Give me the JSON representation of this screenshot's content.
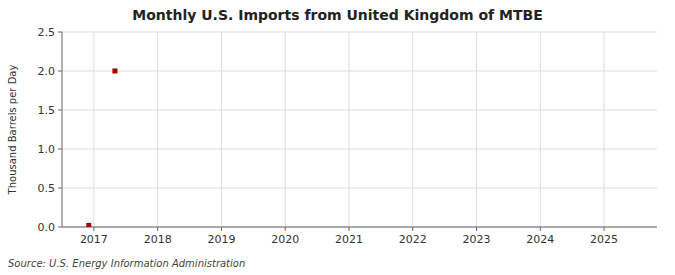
{
  "chart_data": {
    "type": "scatter",
    "title": "Monthly U.S. Imports from United Kingdom of MTBE",
    "ylabel": "Thousand Barrels per Day",
    "source": "Source: U.S. Energy Information Administration",
    "x": [
      2016.92,
      2017.33
    ],
    "values": [
      0.02,
      2.0
    ],
    "color": "#aa0000",
    "marker": "square",
    "xlim": [
      2016.5,
      2025.83
    ],
    "ylim": [
      0.0,
      2.5
    ],
    "xticks": [
      2017,
      2018,
      2019,
      2020,
      2021,
      2022,
      2023,
      2024,
      2025
    ],
    "yticks": [
      {
        "value": 0.0,
        "label": "0.0"
      },
      0.5,
      {
        "value": 1.0,
        "label": "1.0"
      },
      1.5,
      {
        "value": 2.0,
        "label": "2.0"
      },
      2.5
    ],
    "grid": true
  }
}
